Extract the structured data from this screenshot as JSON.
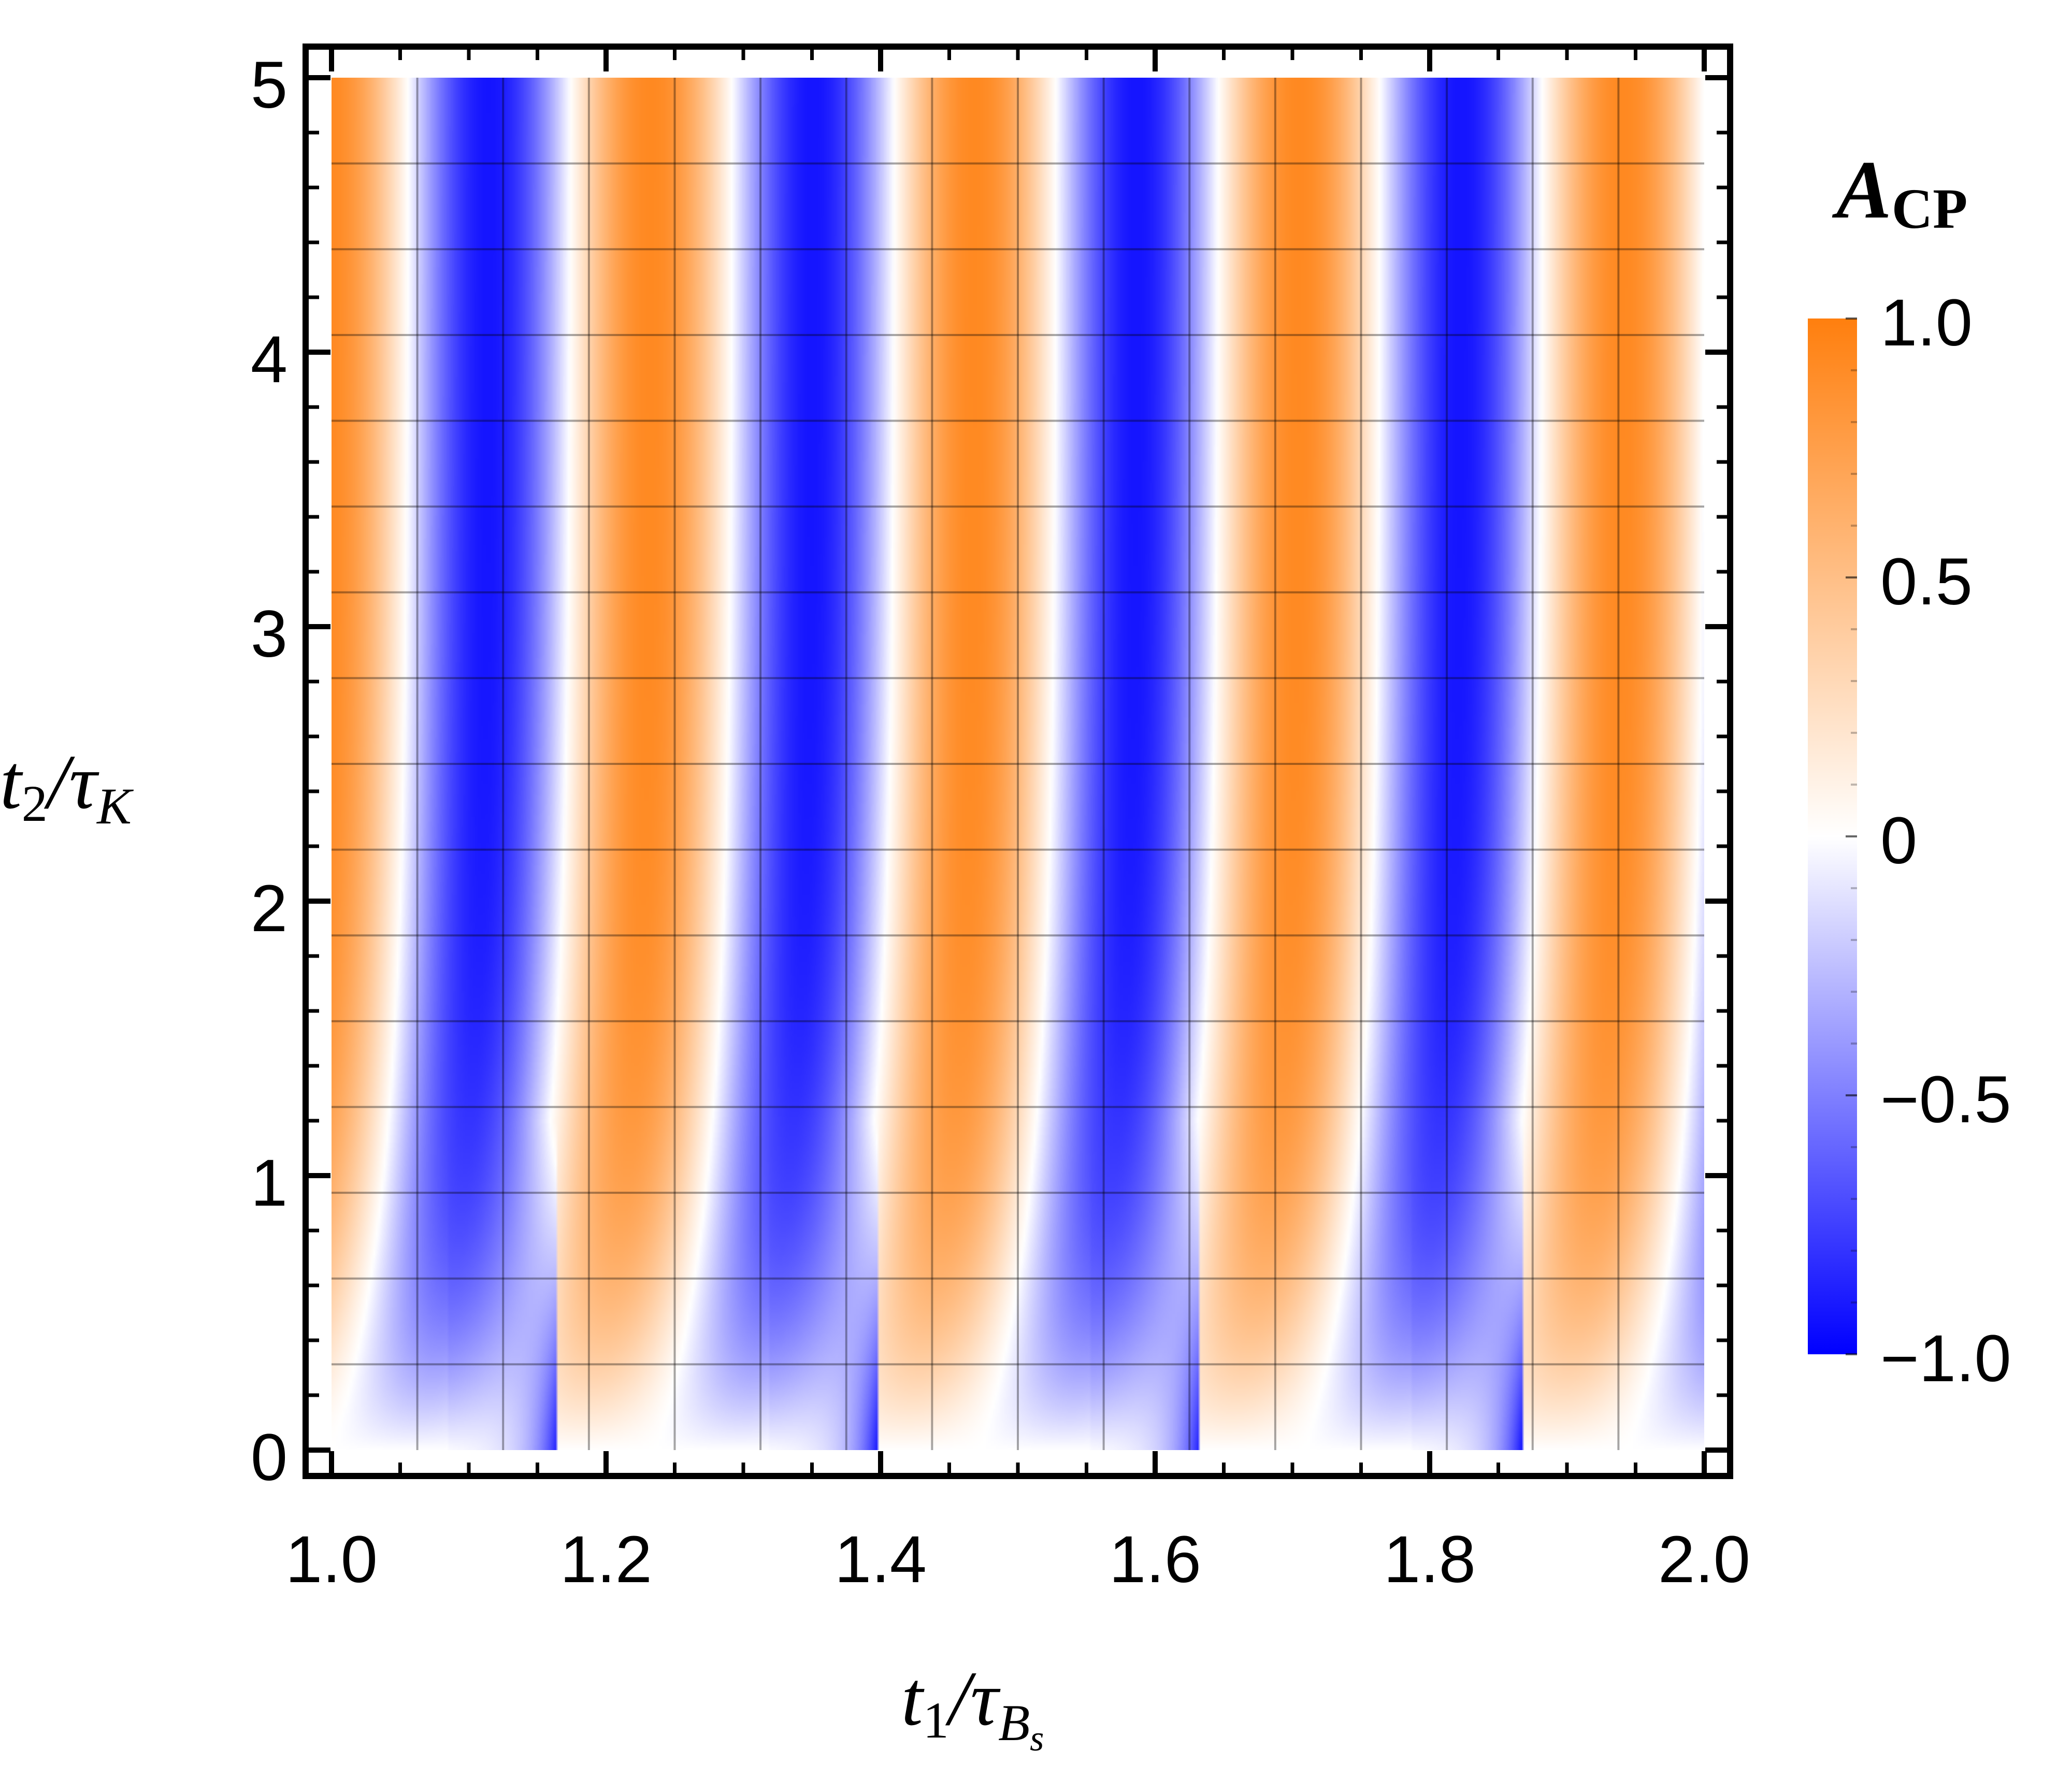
{
  "chart_data": {
    "type": "heatmap",
    "title": "",
    "xlabel": {
      "main": "t",
      "sub": "1",
      "slash": "/τ",
      "sub2": "B",
      "sub3": "s"
    },
    "ylabel": {
      "main": "t",
      "sub": "2",
      "slash": "/τ",
      "sub2": "K"
    },
    "xlim": [
      1.0,
      2.0
    ],
    "ylim": [
      0,
      5
    ],
    "x_ticks": [
      1.0,
      1.2,
      1.4,
      1.6,
      1.8,
      2.0
    ],
    "x_tick_labels": [
      "1.0",
      "1.2",
      "1.4",
      "1.6",
      "1.8",
      "2.0"
    ],
    "y_ticks": [
      0,
      1,
      2,
      3,
      4,
      5
    ],
    "y_tick_labels": [
      "0",
      "1",
      "2",
      "3",
      "4",
      "5"
    ],
    "z_range": [
      -1.0,
      1.0
    ],
    "colorbar": {
      "title_main": "A",
      "title_sub": "CP",
      "ticks": [
        1.0,
        0.5,
        0,
        -0.5,
        -1.0
      ],
      "tick_labels": [
        "1.0",
        "0.5",
        "0",
        "−0.5",
        "−1.0"
      ],
      "color_max": "#ff7f0e",
      "color_zero": "#ffffff",
      "color_min": "#0000ff"
    },
    "mesh_lines_x": [
      1.0625,
      1.125,
      1.1875,
      1.25,
      1.3125,
      1.375,
      1.4375,
      1.5,
      1.5625,
      1.625,
      1.6875,
      1.75,
      1.8125,
      1.875,
      1.9375
    ],
    "mesh_lines_y": [
      0.3125,
      0.625,
      0.9375,
      1.25,
      1.5625,
      1.875,
      2.1875,
      2.5,
      2.8125,
      3.125,
      3.4375,
      3.75,
      4.0625,
      4.375,
      4.6875
    ],
    "model": {
      "description": "",
      "oscillation_period_x": 0.236,
      "discontinuity_x": [
        1.165,
        1.398,
        1.633,
        1.867
      ],
      "blue_peak_offset": -0.05,
      "rise_scale_y": 0.6
    },
    "grid": true,
    "legend": "colorbar right"
  }
}
